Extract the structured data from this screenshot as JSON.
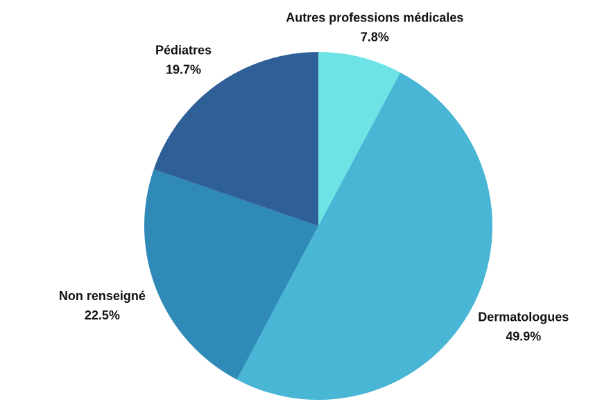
{
  "chart_data": {
    "type": "pie",
    "categories": [
      "Autres professions médicales",
      "Dermatologues",
      "Non renseigné",
      "Pédiatres"
    ],
    "values": [
      7.8,
      49.9,
      22.5,
      19.7
    ],
    "value_labels": [
      "7.8%",
      "49.9%",
      "22.5%",
      "19.7%"
    ],
    "colors": [
      "#6de3e6",
      "#48b6d4",
      "#2f8ab8",
      "#2f5f97"
    ]
  }
}
